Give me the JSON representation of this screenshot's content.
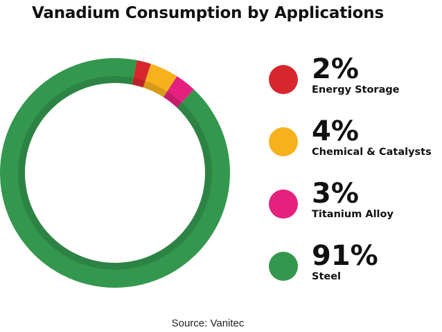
{
  "chart_data": {
    "type": "pie",
    "title": "Vanadium Consumption by Applications",
    "source": "Source: Vanitec",
    "legend_position": "right",
    "slices": [
      {
        "label": "Energy Storage",
        "value": 2,
        "value_label": "2%",
        "color": "#d7262e"
      },
      {
        "label": "Chemical & Catalysts",
        "value": 4,
        "value_label": "4%",
        "color": "#f7b11d"
      },
      {
        "label": "Titanium Alloy",
        "value": 3,
        "value_label": "3%",
        "color": "#e4217f"
      },
      {
        "label": "Steel",
        "value": 91,
        "value_label": "91%",
        "color": "#34974e"
      }
    ]
  }
}
